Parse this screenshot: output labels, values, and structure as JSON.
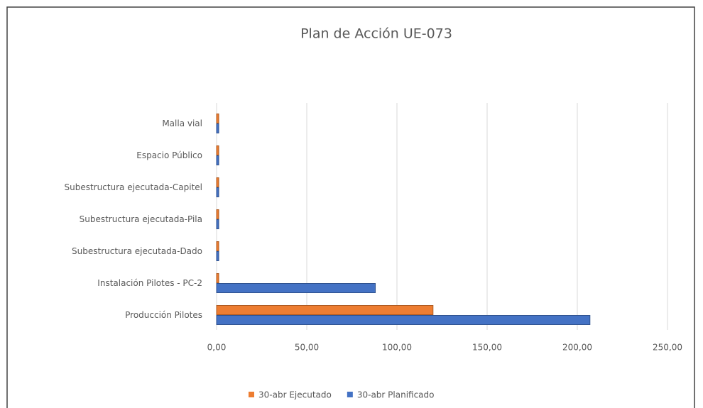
{
  "chart_data": {
    "type": "bar",
    "orientation": "horizontal",
    "title": "Plan de Acción UE-073",
    "categories": [
      "Producción Pilotes",
      "Instalación Pilotes - PC-2",
      "Subestructura ejecutada-Dado",
      "Subestructura ejecutada-Pila",
      "Subestructura ejecutada-Capitel",
      "Espacio Público",
      "Malla vial"
    ],
    "series": [
      {
        "name": "30-abr Ejecutado",
        "color": "#ed7d31",
        "values": [
          120,
          0,
          0,
          0,
          0,
          0,
          0
        ]
      },
      {
        "name": "30-abr Planificado",
        "color": "#4472c4",
        "values": [
          207,
          88,
          0,
          0,
          0,
          0,
          0
        ]
      }
    ],
    "xlim": [
      0,
      250
    ],
    "xticks": [
      {
        "value": 0,
        "label": "0,00"
      },
      {
        "value": 50,
        "label": "50,00"
      },
      {
        "value": 100,
        "label": "100,00"
      },
      {
        "value": 150,
        "label": "150,00"
      },
      {
        "value": 200,
        "label": "200,00"
      },
      {
        "value": 250,
        "label": "250,00"
      }
    ],
    "grid": true,
    "legend": "bottom"
  }
}
